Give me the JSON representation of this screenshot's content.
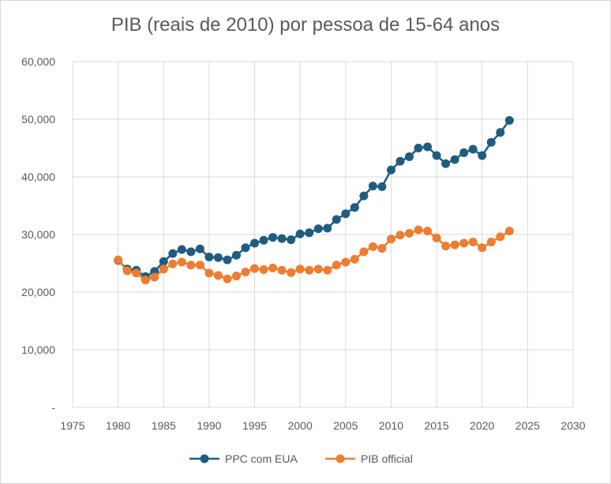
{
  "chart_data": {
    "type": "scatter",
    "title": "PIB (reais de 2010) por pessoa de 15-64 anos",
    "xlabel": "",
    "ylabel": "",
    "xlim": [
      1975,
      2030
    ],
    "ylim": [
      0,
      60000
    ],
    "x_ticks": [
      1975,
      1980,
      1985,
      1990,
      1995,
      2000,
      2005,
      2010,
      2015,
      2020,
      2025,
      2030
    ],
    "x_tick_labels": [
      "1975",
      "1980",
      "1985",
      "1990",
      "1995",
      "2000",
      "2005",
      "2010",
      "2015",
      "2020",
      "2025",
      "2030"
    ],
    "y_ticks": [
      0,
      10000,
      20000,
      30000,
      40000,
      50000,
      60000
    ],
    "y_tick_labels": [
      "-",
      "10,000",
      "20,000",
      "30,000",
      "40,000",
      "50,000",
      "60,000"
    ],
    "grid": true,
    "legend_position": "bottom",
    "x": [
      1980,
      1981,
      1982,
      1983,
      1984,
      1985,
      1986,
      1987,
      1988,
      1989,
      1990,
      1991,
      1992,
      1993,
      1994,
      1995,
      1996,
      1997,
      1998,
      1999,
      2000,
      2001,
      2002,
      2003,
      2004,
      2005,
      2006,
      2007,
      2008,
      2009,
      2010,
      2011,
      2012,
      2013,
      2014,
      2015,
      2016,
      2017,
      2018,
      2019,
      2020,
      2021,
      2022,
      2023
    ],
    "series": [
      {
        "name": "PPC com EUA",
        "color": "#1f5c7f",
        "values": [
          25500,
          24000,
          23800,
          22700,
          23600,
          25300,
          26700,
          27400,
          27000,
          27500,
          26100,
          26000,
          25600,
          26400,
          27700,
          28500,
          29000,
          29500,
          29300,
          29100,
          30100,
          30300,
          31000,
          31100,
          32600,
          33600,
          34700,
          36700,
          38400,
          38300,
          41200,
          42700,
          43500,
          45000,
          45200,
          43700,
          42300,
          43000,
          44200,
          44800,
          43700,
          46000,
          47700,
          49800
        ]
      },
      {
        "name": "PIB official",
        "color": "#ed7d31",
        "values": [
          25600,
          23700,
          23300,
          22100,
          22600,
          24000,
          24900,
          25200,
          24700,
          24700,
          23300,
          22900,
          22300,
          22800,
          23500,
          24100,
          23900,
          24200,
          23800,
          23400,
          24000,
          23800,
          24000,
          23800,
          24700,
          25200,
          25700,
          27000,
          27900,
          27600,
          29200,
          29900,
          30200,
          30800,
          30600,
          29400,
          28000,
          28200,
          28500,
          28700,
          27700,
          28700,
          29600,
          30600
        ]
      }
    ]
  }
}
